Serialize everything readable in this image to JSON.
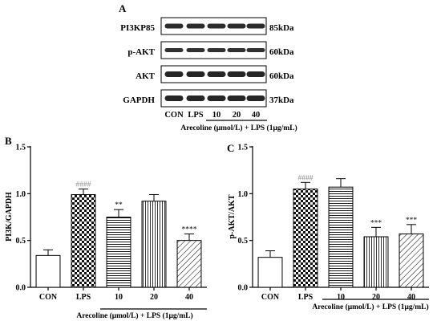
{
  "blot": {
    "panel_label": "A",
    "rows": [
      {
        "protein": "PI3KP85",
        "mw": "85kDa"
      },
      {
        "protein": "p-AKT",
        "mw": "60kDa"
      },
      {
        "protein": "AKT",
        "mw": "60kDa"
      },
      {
        "protein": "GAPDH",
        "mw": "37kDa"
      }
    ],
    "lanes": [
      "CON",
      "LPS",
      "10",
      "20",
      "40"
    ],
    "treatment_label": "Arecoline (μmol/L) + LPS (1μg/mL)"
  },
  "chart_data": [
    {
      "panel_label": "B",
      "type": "bar",
      "categories": [
        "CON",
        "LPS",
        "10",
        "20",
        "40"
      ],
      "values": [
        0.34,
        0.99,
        0.75,
        0.92,
        0.5
      ],
      "errors": [
        0.06,
        0.06,
        0.08,
        0.07,
        0.07
      ],
      "annotations": [
        "",
        "####",
        "**",
        "",
        "****"
      ],
      "patterns": [
        "white",
        "checker",
        "hlines",
        "vlines",
        "diag"
      ],
      "ylabel": "PI3K/GAPDH",
      "xlabel": "Arecoline (μmol/L) + LPS (1μg/mL)",
      "ylim": [
        0,
        1.5
      ],
      "yticks": [
        "0.0",
        "0.5",
        "1.0",
        "1.5"
      ],
      "ytick_values": [
        0,
        0.5,
        1.0,
        1.5
      ]
    },
    {
      "panel_label": "C",
      "type": "bar",
      "categories": [
        "CON",
        "LPS",
        "10",
        "20",
        "40"
      ],
      "values": [
        0.32,
        1.05,
        1.07,
        0.54,
        0.57
      ],
      "errors": [
        0.07,
        0.07,
        0.09,
        0.1,
        0.1
      ],
      "annotations": [
        "",
        "####",
        "",
        "***",
        "***"
      ],
      "patterns": [
        "white",
        "checker",
        "hlines",
        "vlines",
        "diag"
      ],
      "ylabel": "p-AKT/AKT",
      "xlabel": "Arecoline (μmol/L) + LPS (1μg/mL)",
      "ylim": [
        0,
        1.5
      ],
      "yticks": [
        "0.0",
        "0.5",
        "1.0",
        "1.5"
      ],
      "ytick_values": [
        0,
        0.5,
        1.0,
        1.5
      ]
    }
  ]
}
